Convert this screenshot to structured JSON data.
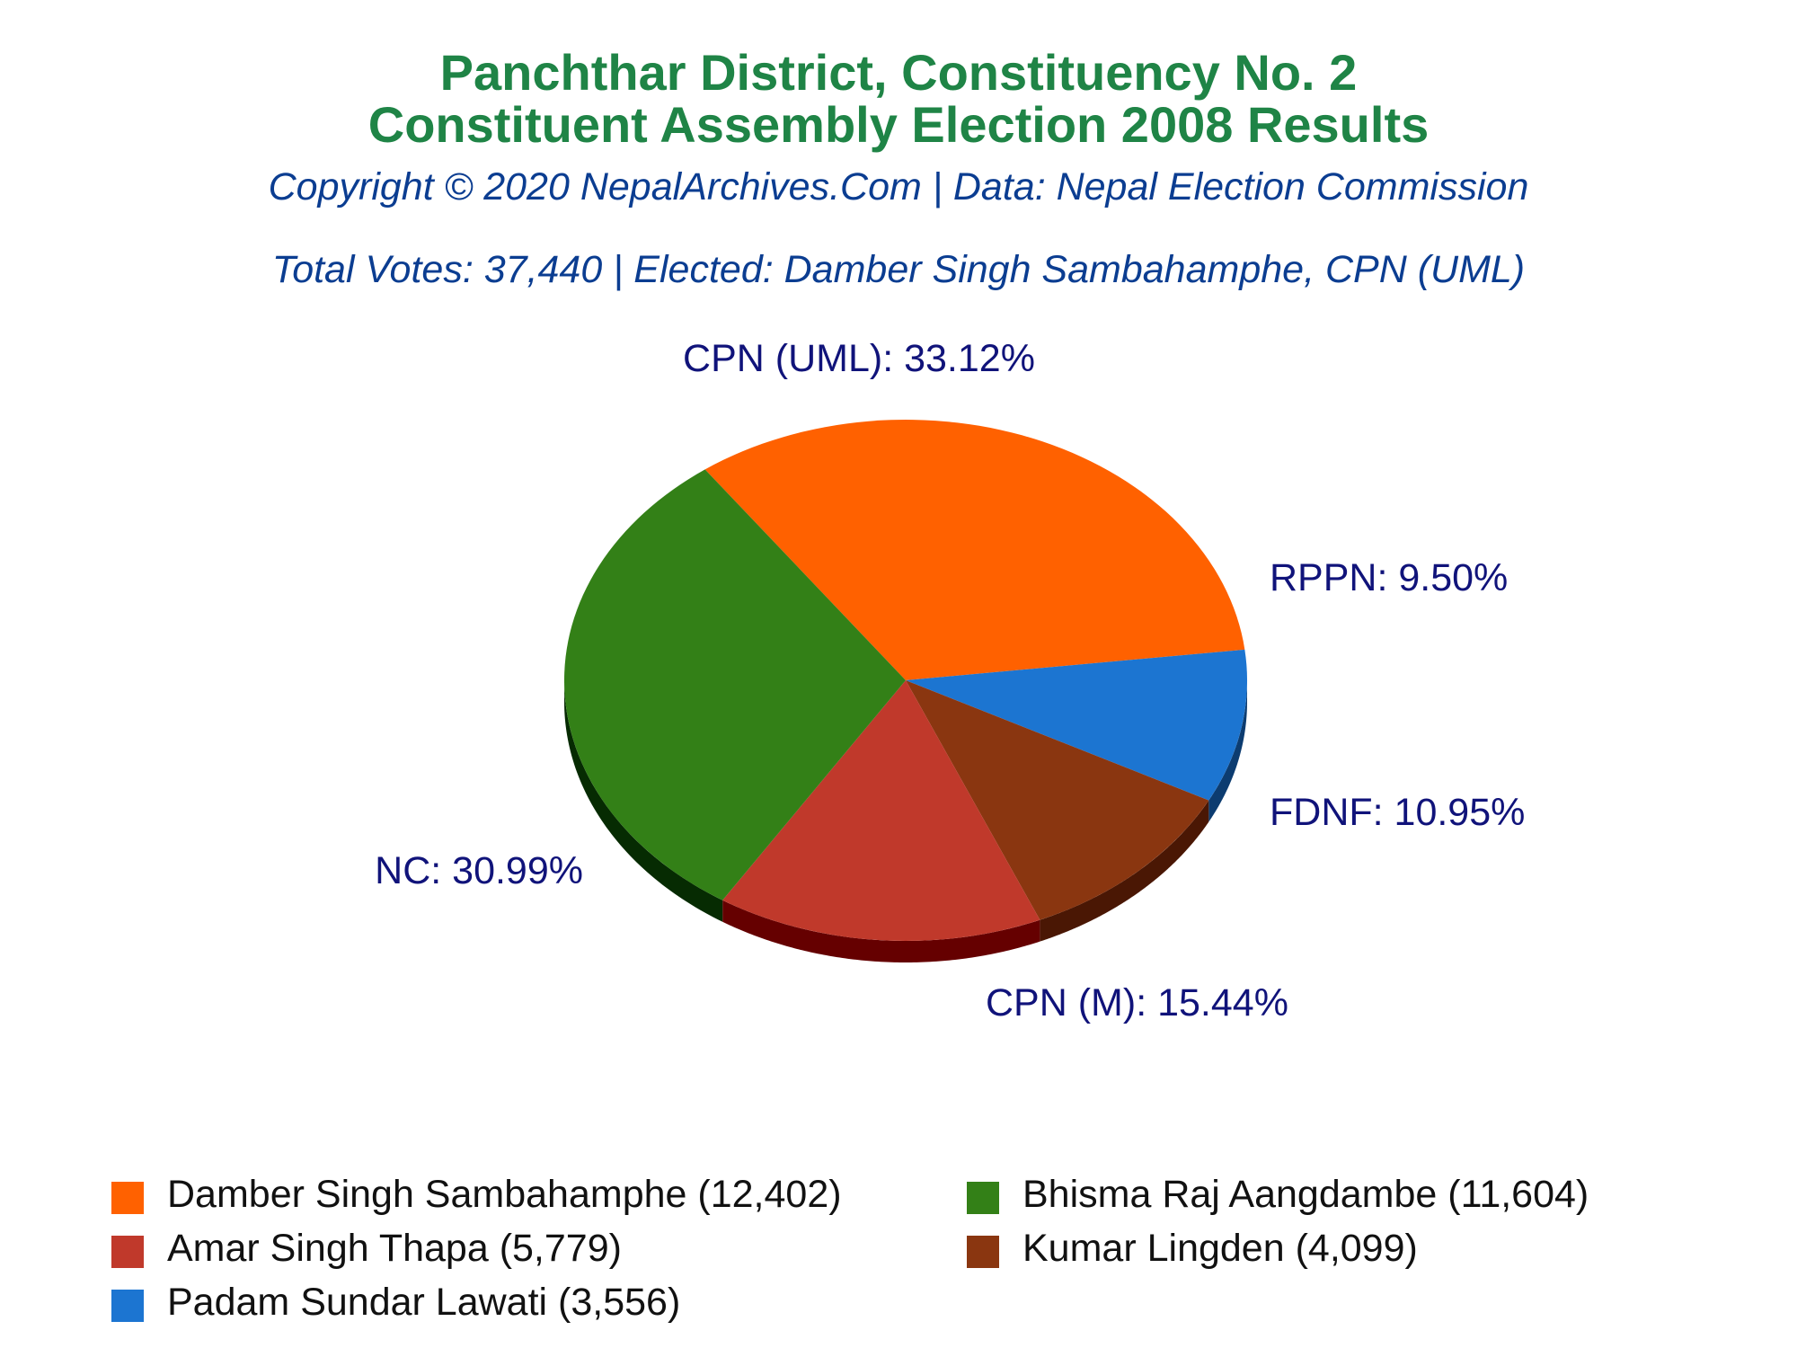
{
  "header": {
    "title_line1": "Panchthar District, Constituency No. 2",
    "title_line2": "Constituent Assembly Election 2008 Results",
    "copyright": "Copyright © 2020 NepalArchives.Com | Data: Nepal Election Commission",
    "summary": "Total Votes: 37,440 | Elected: Damber Singh Sambahamphe, CPN (UML)"
  },
  "chart_data": {
    "type": "pie",
    "title": "Panchthar District, Constituency No. 2 Constituent Assembly Election 2008 Results",
    "total_votes": 37440,
    "slices": [
      {
        "party": "CPN (UML)",
        "percent": 33.12,
        "label": "CPN (UML): 33.12%",
        "candidate": "Damber Singh Sambahamphe",
        "votes": 12402,
        "legend": "Damber Singh Sambahamphe (12,402)",
        "color": "#ff6100",
        "shade": "#a33e00"
      },
      {
        "party": "RPPN",
        "percent": 9.5,
        "label": "RPPN: 9.50%",
        "candidate": "Padam Sundar Lawati",
        "votes": 3556,
        "legend": "Padam Sundar Lawati (3,556)",
        "color": "#1c75d1",
        "shade": "#0c3c70"
      },
      {
        "party": "FDNF",
        "percent": 10.95,
        "label": "FDNF: 10.95%",
        "candidate": "Kumar Lingden",
        "votes": 4099,
        "legend": "Kumar Lingden (4,099)",
        "color": "#8a3610",
        "shade": "#4a1704"
      },
      {
        "party": "CPN (M)",
        "percent": 15.44,
        "label": "CPN (M): 15.44%",
        "candidate": "Amar Singh Thapa",
        "votes": 5779,
        "legend": "Amar Singh Thapa (5,779)",
        "color": "#c0392b",
        "shade": "#650000"
      },
      {
        "party": "NC",
        "percent": 30.99,
        "label": "NC: 30.99%",
        "candidate": "Bhisma Raj Aangdambe",
        "votes": 11604,
        "legend": "Bhisma Raj Aangdambe (11,604)",
        "color": "#338017",
        "shade": "#062b02"
      }
    ],
    "legend_order": [
      "CPN (UML)",
      "NC",
      "CPN (M)",
      "FDNF",
      "RPPN"
    ],
    "label_color": "#10137a"
  }
}
